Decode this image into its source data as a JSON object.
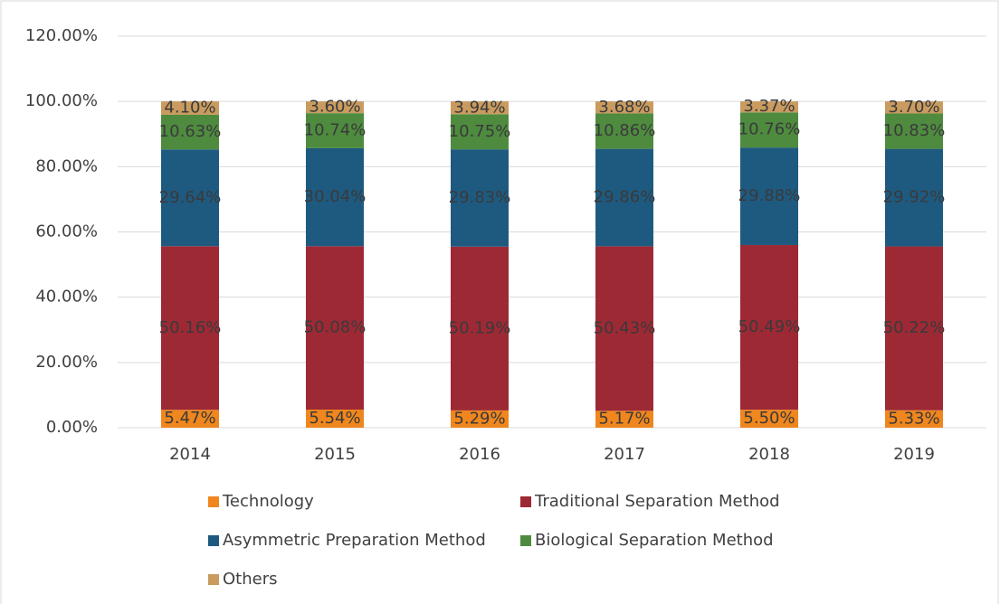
{
  "chart_data": {
    "type": "stacked_bar",
    "categories": [
      "2014",
      "2015",
      "2016",
      "2017",
      "2018",
      "2019"
    ],
    "series": [
      {
        "name": "Technology",
        "color": "#f0861e",
        "values": [
          5.47,
          5.54,
          5.29,
          5.17,
          5.5,
          5.33
        ],
        "value_labels": [
          "5.47%",
          "5.54%",
          "5.29%",
          "5.17%",
          "5.50%",
          "5.33%"
        ]
      },
      {
        "name": "Traditional Separation Method",
        "color": "#9d2935",
        "values": [
          50.16,
          50.08,
          50.19,
          50.43,
          50.49,
          50.22
        ],
        "value_labels": [
          "50.16%",
          "50.08%",
          "50.19%",
          "50.43%",
          "50.49%",
          "50.22%"
        ]
      },
      {
        "name": "Asymmetric Preparation Method",
        "color": "#1e5a80",
        "values": [
          29.64,
          30.04,
          29.83,
          29.86,
          29.88,
          29.92
        ],
        "value_labels": [
          "29.64%",
          "30.04%",
          "29.83%",
          "29.86%",
          "29.88%",
          "29.92%"
        ]
      },
      {
        "name": "Biological Separation Method",
        "color": "#4e8b3f",
        "values": [
          10.63,
          10.74,
          10.75,
          10.86,
          10.76,
          10.83
        ],
        "value_labels": [
          "10.63%",
          "10.74%",
          "10.75%",
          "10.86%",
          "10.76%",
          "10.83%"
        ]
      },
      {
        "name": "Others",
        "color": "#c99b5f",
        "values": [
          4.1,
          3.6,
          3.94,
          3.68,
          3.37,
          3.7
        ],
        "value_labels": [
          "4.10%",
          "3.60%",
          "3.94%",
          "3.68%",
          "3.37%",
          "3.70%"
        ]
      }
    ],
    "ylim": [
      0,
      120
    ],
    "yticks": [
      {
        "value": 0,
        "label": "0.00%"
      },
      {
        "value": 20,
        "label": "20.00%"
      },
      {
        "value": 40,
        "label": "40.00%"
      },
      {
        "value": 60,
        "label": "60.00%"
      },
      {
        "value": 80,
        "label": "80.00%"
      },
      {
        "value": 100,
        "label": "100.00%"
      },
      {
        "value": 120,
        "label": "120.00%"
      }
    ],
    "grid": true
  }
}
